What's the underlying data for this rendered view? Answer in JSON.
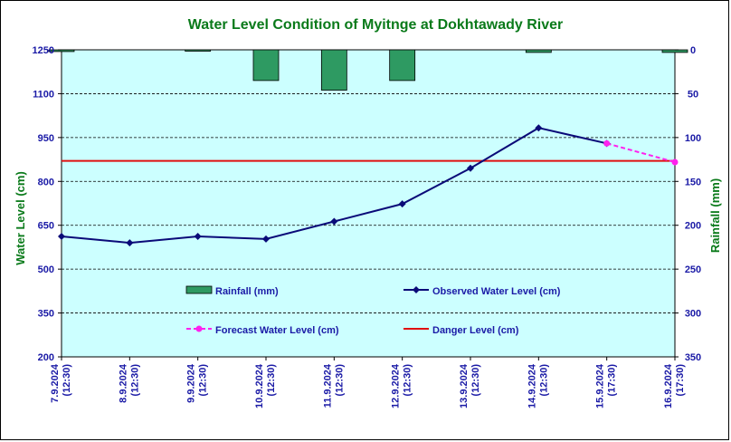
{
  "chart_data": {
    "type": "bar+line",
    "title": "Water Level Condition of Myitnge at Dokhtawady River",
    "ylabel_left": "Water Level (cm)",
    "ylabel_right": "Rainfall (mm)",
    "ylim_left": [
      200,
      1250
    ],
    "yticks_left": [
      200,
      350,
      500,
      650,
      800,
      950,
      1100,
      1250
    ],
    "ylim_right": [
      0,
      350
    ],
    "yticks_right": [
      0,
      50,
      100,
      150,
      200,
      250,
      300,
      350
    ],
    "right_axis_inverted": true,
    "grid": "horizontal dashed",
    "categories": [
      [
        "7.9.2024",
        "(12:30)"
      ],
      [
        "8.9.2024",
        "(12:30)"
      ],
      [
        "9.9.2024",
        "(12:30)"
      ],
      [
        "10.9.2024",
        "(12:30)"
      ],
      [
        "11.9.2024",
        "(12:30)"
      ],
      [
        "12.9.2024",
        "(12:30)"
      ],
      [
        "13.9.2024",
        "(12:30)"
      ],
      [
        "14.9.2024",
        "(12:30)"
      ],
      [
        "15.9.2024",
        "(17:30)"
      ],
      [
        "16.9.2024",
        "(17:30)"
      ]
    ],
    "rainfall": {
      "name": "Rainfall (mm)",
      "color": "#2e9a62",
      "values": [
        2,
        0,
        1,
        35,
        46,
        35,
        0,
        3,
        0,
        3
      ]
    },
    "observed": {
      "name": "Observed Water Level (cm)",
      "color": "#0a0a78",
      "values": [
        612,
        590,
        612,
        603,
        663,
        723,
        845,
        983,
        930,
        null
      ]
    },
    "forecast": {
      "name": "Forecast Water Level (cm)",
      "color": "#ff22ee",
      "values": [
        null,
        null,
        null,
        null,
        null,
        null,
        null,
        null,
        930,
        866
      ]
    },
    "danger": {
      "name": "Danger Level (cm)",
      "color": "#e01010",
      "value": 870
    },
    "plot_background": "#ccffff"
  }
}
